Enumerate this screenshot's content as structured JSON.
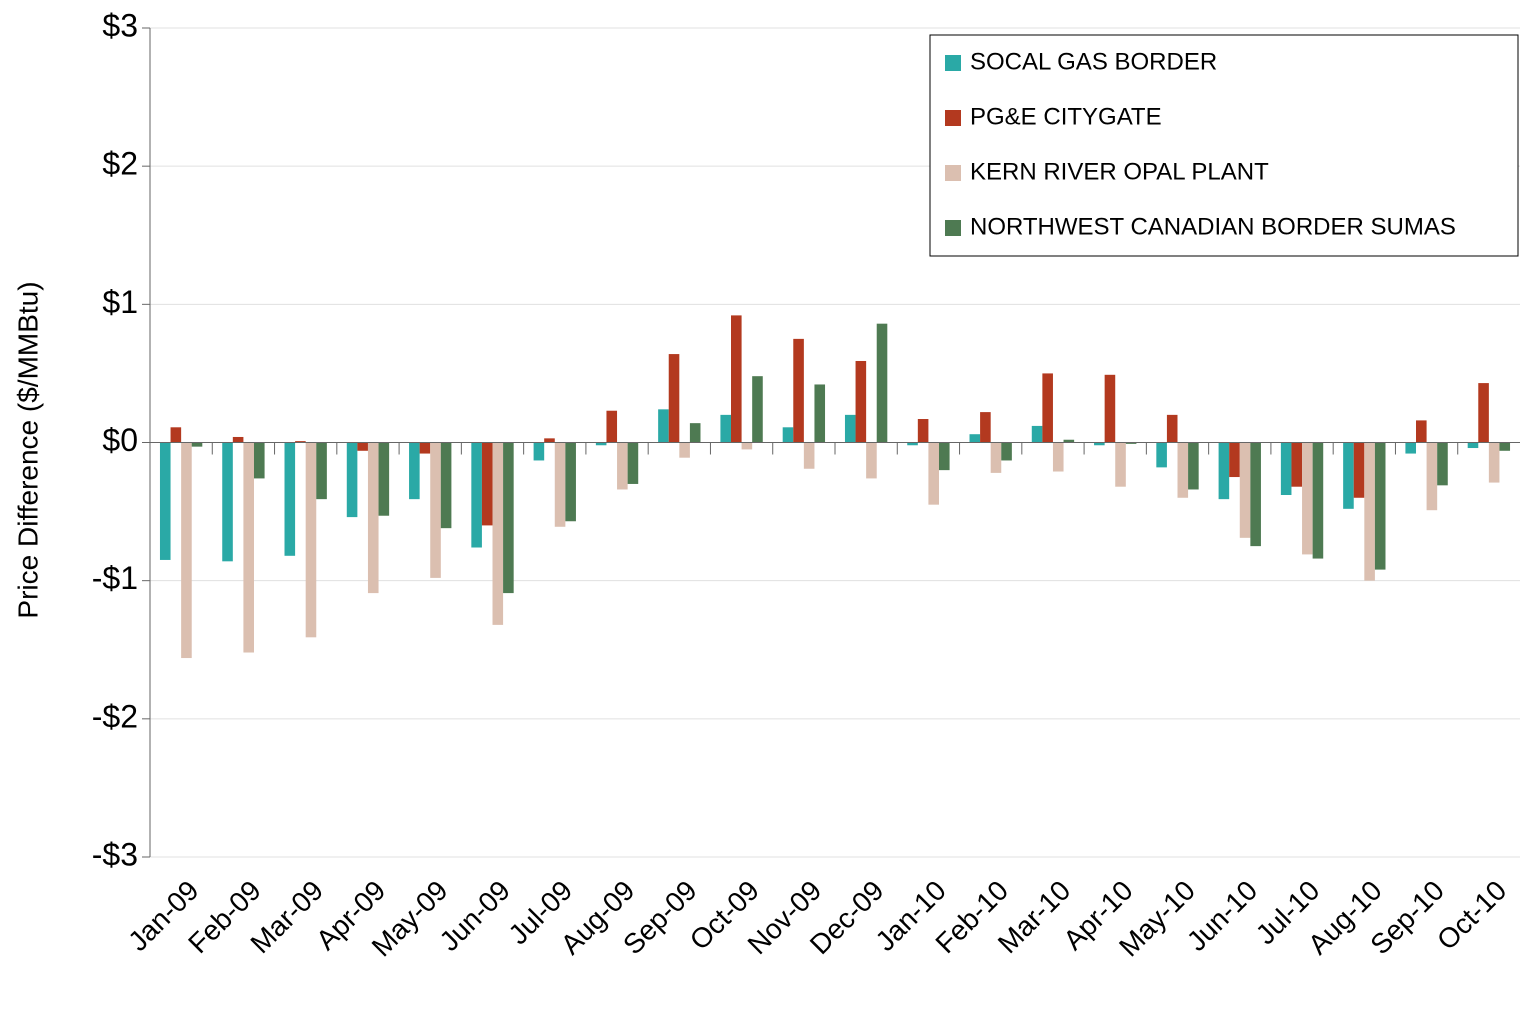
{
  "chart_data": {
    "type": "bar",
    "y_label": "Price Difference  ($/MMBtu)",
    "categories": [
      "Jan-09",
      "Feb-09",
      "Mar-09",
      "Apr-09",
      "May-09",
      "Jun-09",
      "Jul-09",
      "Aug-09",
      "Sep-09",
      "Oct-09",
      "Nov-09",
      "Dec-09",
      "Jan-10",
      "Feb-10",
      "Mar-10",
      "Apr-10",
      "May-10",
      "Jun-10",
      "Jul-10",
      "Aug-10",
      "Sep-10",
      "Oct-10"
    ],
    "series": [
      {
        "name": "SOCAL GAS BORDER",
        "color": "#2aa9a6",
        "values": [
          -0.85,
          -0.86,
          -0.82,
          -0.54,
          -0.41,
          -0.76,
          -0.13,
          -0.02,
          0.24,
          0.2,
          0.11,
          0.2,
          -0.02,
          0.06,
          0.12,
          -0.02,
          -0.18,
          -0.41,
          -0.38,
          -0.48,
          -0.08,
          -0.04
        ]
      },
      {
        "name": "PG&E CITYGATE",
        "color": "#b3391f",
        "values": [
          0.11,
          0.04,
          0.01,
          -0.06,
          -0.08,
          -0.6,
          0.03,
          0.23,
          0.64,
          0.92,
          0.75,
          0.59,
          0.17,
          0.22,
          0.5,
          0.49,
          0.2,
          -0.25,
          -0.32,
          -0.4,
          0.16,
          0.43
        ]
      },
      {
        "name": "KERN RIVER OPAL PLANT",
        "color": "#dbbfb0",
        "values": [
          -1.56,
          -1.52,
          -1.41,
          -1.09,
          -0.98,
          -1.32,
          -0.61,
          -0.34,
          -0.11,
          -0.05,
          -0.19,
          -0.26,
          -0.45,
          -0.22,
          -0.21,
          -0.32,
          -0.4,
          -0.69,
          -0.81,
          -1.0,
          -0.49,
          -0.29
        ]
      },
      {
        "name": "NORTHWEST CANADIAN BORDER SUMAS",
        "color": "#4e7a52",
        "values": [
          -0.03,
          -0.26,
          -0.41,
          -0.53,
          -0.62,
          -1.09,
          -0.57,
          -0.3,
          0.14,
          0.48,
          0.42,
          0.86,
          -0.2,
          -0.13,
          0.02,
          -0.01,
          -0.34,
          -0.75,
          -0.84,
          -0.92,
          -0.31,
          -0.06
        ]
      }
    ],
    "ylim": [
      -3,
      3
    ],
    "yticks": [
      {
        "value": -3,
        "label": "-$3"
      },
      {
        "value": -2,
        "label": "-$2"
      },
      {
        "value": -1,
        "label": "-$1"
      },
      {
        "value": 0,
        "label": "$0"
      },
      {
        "value": 1,
        "label": "$1"
      },
      {
        "value": 2,
        "label": "$2"
      },
      {
        "value": 3,
        "label": "$3"
      }
    ],
    "grid": true,
    "legend": "top-right"
  }
}
